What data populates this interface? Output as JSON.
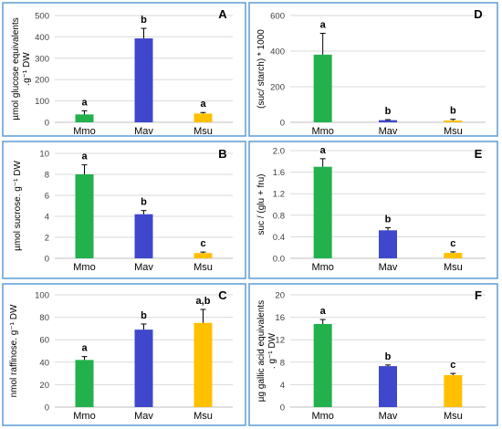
{
  "colors": {
    "Mmo": "#22b14c",
    "Mav": "#3f48cc",
    "Msu": "#ffc000",
    "frame": "#5b9bd5",
    "grid": "#d9d9d9"
  },
  "chart_data": [
    {
      "type": "bar",
      "panel": "A",
      "categories": [
        "Mmo",
        "Mav",
        "Msu"
      ],
      "values": [
        37,
        393,
        41
      ],
      "errors": [
        17,
        47,
        5
      ],
      "significance": [
        "a",
        "b",
        "a"
      ],
      "ylabel_lines": [
        "µmol glucose equivalents",
        ".g⁻¹ DW"
      ],
      "ylim": [
        0,
        500
      ],
      "yticks": [
        {
          "v": 0,
          "t": "0"
        },
        {
          "v": 100,
          "t": "100"
        },
        {
          "v": 200,
          "t": "200"
        },
        {
          "v": 300,
          "t": "300"
        },
        {
          "v": 400,
          "t": "400"
        },
        {
          "v": 500,
          "t": "500"
        }
      ],
      "grid": true
    },
    {
      "type": "bar",
      "panel": "D",
      "categories": [
        "Mmo",
        "Mav",
        "Msu"
      ],
      "values": [
        380,
        12,
        10
      ],
      "errors": [
        120,
        3,
        7
      ],
      "significance": [
        "a",
        "b",
        "b"
      ],
      "ylabel_lines": [
        "(suc/ starch) * 1000"
      ],
      "ylim": [
        0,
        600
      ],
      "yticks": [
        {
          "v": 0,
          "t": "0"
        },
        {
          "v": 200,
          "t": "200"
        },
        {
          "v": 400,
          "t": "400"
        },
        {
          "v": 600,
          "t": "600"
        }
      ],
      "grid": true
    },
    {
      "type": "bar",
      "panel": "B",
      "categories": [
        "Mmo",
        "Mav",
        "Msu"
      ],
      "values": [
        8.0,
        4.2,
        0.5
      ],
      "errors": [
        0.9,
        0.35,
        0.1
      ],
      "significance": [
        "a",
        "b",
        "c"
      ],
      "ylabel_lines": [
        "µmol sucrose. g⁻¹ DW"
      ],
      "ylim": [
        0,
        10
      ],
      "yticks": [
        {
          "v": 0,
          "t": "0"
        },
        {
          "v": 2,
          "t": "2"
        },
        {
          "v": 4,
          "t": "4"
        },
        {
          "v": 6,
          "t": "6"
        },
        {
          "v": 8,
          "t": "8"
        },
        {
          "v": 10,
          "t": "10"
        }
      ],
      "grid": true
    },
    {
      "type": "bar",
      "panel": "E",
      "categories": [
        "Mmo",
        "Mav",
        "Msu"
      ],
      "values": [
        1.7,
        0.52,
        0.1
      ],
      "errors": [
        0.15,
        0.05,
        0.02
      ],
      "significance": [
        "a",
        "b",
        "c"
      ],
      "ylabel_lines": [
        "suc / (glu + fru)"
      ],
      "ylim": [
        0,
        2.0
      ],
      "yticks": [
        {
          "v": 0,
          "t": "0.0"
        },
        {
          "v": 0.4,
          "t": "0.4"
        },
        {
          "v": 0.8,
          "t": "0.8"
        },
        {
          "v": 1.2,
          "t": "1.2"
        },
        {
          "v": 1.6,
          "t": "1.6"
        },
        {
          "v": 2.0,
          "t": "2.0"
        }
      ],
      "grid": true
    },
    {
      "type": "bar",
      "panel": "C",
      "categories": [
        "Mmo",
        "Mav",
        "Msu"
      ],
      "values": [
        42,
        69,
        75
      ],
      "errors": [
        3,
        5,
        12
      ],
      "significance": [
        "a",
        "b",
        "a,b"
      ],
      "ylabel_lines": [
        "nmol raffinose. g⁻¹ DW"
      ],
      "ylim": [
        0,
        100
      ],
      "yticks": [
        {
          "v": 0,
          "t": "0"
        },
        {
          "v": 20,
          "t": "20"
        },
        {
          "v": 40,
          "t": "40"
        },
        {
          "v": 60,
          "t": "60"
        },
        {
          "v": 80,
          "t": "80"
        },
        {
          "v": 100,
          "t": "100"
        }
      ],
      "grid": true
    },
    {
      "type": "bar",
      "panel": "F",
      "categories": [
        "Mmo",
        "Mav",
        "Msu"
      ],
      "values": [
        14.8,
        7.3,
        5.7
      ],
      "errors": [
        0.8,
        0.2,
        0.3
      ],
      "significance": [
        "a",
        "b",
        "c"
      ],
      "ylabel_lines": [
        "µg gallic acid equivalents",
        ". g⁻¹ DW"
      ],
      "ylim": [
        0,
        20
      ],
      "yticks": [
        {
          "v": 0,
          "t": "0"
        },
        {
          "v": 4,
          "t": "4"
        },
        {
          "v": 8,
          "t": "8"
        },
        {
          "v": 12,
          "t": "12"
        },
        {
          "v": 16,
          "t": "16"
        },
        {
          "v": 20,
          "t": "20"
        }
      ],
      "grid": true
    }
  ]
}
